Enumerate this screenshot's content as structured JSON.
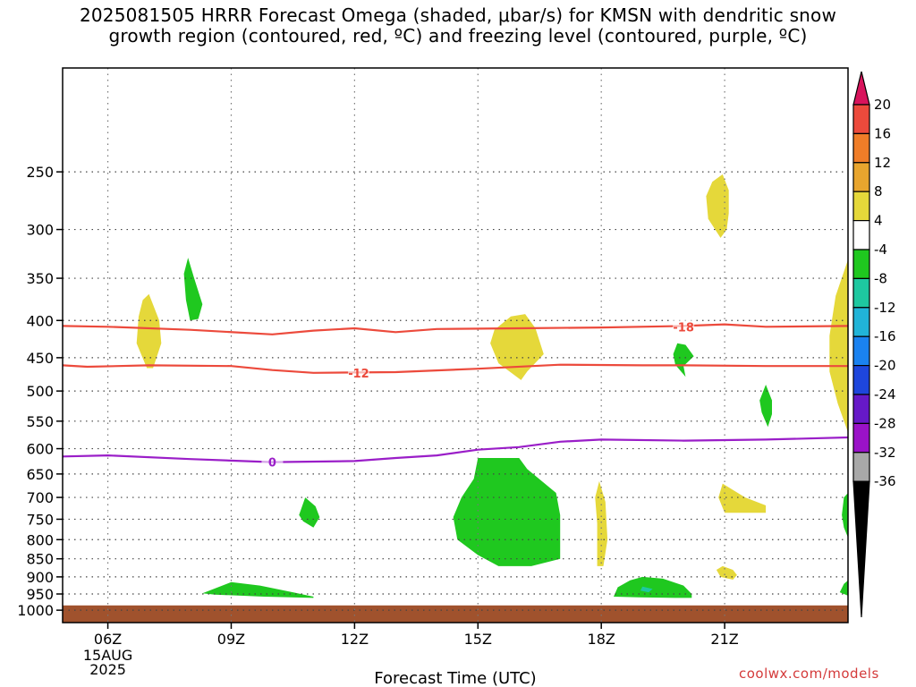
{
  "title": {
    "line1": "2025081505 HRRR Forecast Omega (shaded, μbar/s) for KMSN with dendritic snow",
    "line2": "growth region (contoured, red, ºC) and freezing level (contoured, purple, ºC)"
  },
  "footer": "coolwx.com/models",
  "chart_data": {
    "type": "heatmap",
    "xlabel": "Forecast Time (UTC)",
    "ylabel": "",
    "x_range_hours_utc": [
      4.9,
      24.0
    ],
    "y_range_hpa": [
      1040,
      180
    ],
    "y_scale": "log-pressure (inverted)",
    "grid": "dotted",
    "x_ticks": [
      {
        "hour": 6,
        "label": "06Z",
        "sub1": "15AUG",
        "sub2": "2025"
      },
      {
        "hour": 9,
        "label": "09Z"
      },
      {
        "hour": 12,
        "label": "12Z"
      },
      {
        "hour": 15,
        "label": "15Z"
      },
      {
        "hour": 18,
        "label": "18Z"
      },
      {
        "hour": 21,
        "label": "21Z"
      }
    ],
    "y_ticks": [
      {
        "p": 250,
        "label": "250"
      },
      {
        "p": 300,
        "label": "300"
      },
      {
        "p": 350,
        "label": "350"
      },
      {
        "p": 400,
        "label": "400"
      },
      {
        "p": 450,
        "label": "450"
      },
      {
        "p": 500,
        "label": "500"
      },
      {
        "p": 550,
        "label": "550"
      },
      {
        "p": 600,
        "label": "600"
      },
      {
        "p": 650,
        "label": "650"
      },
      {
        "p": 700,
        "label": "700"
      },
      {
        "p": 750,
        "label": "750"
      },
      {
        "p": 800,
        "label": "800"
      },
      {
        "p": 850,
        "label": "850"
      },
      {
        "p": 900,
        "label": "900"
      },
      {
        "p": 950,
        "label": "950"
      },
      {
        "p": 1000,
        "label": "1000"
      }
    ],
    "ground_top_hpa": 985,
    "ground_color": "#a0522d",
    "contours": [
      {
        "name": "-18 °C",
        "color": "#ec4a3c",
        "label": "-18",
        "label_at": [
          20.0,
          408
        ],
        "points": [
          [
            4.9,
            407
          ],
          [
            6,
            408
          ],
          [
            8,
            412
          ],
          [
            10,
            418
          ],
          [
            11,
            413
          ],
          [
            12,
            410
          ],
          [
            13,
            415
          ],
          [
            14,
            411
          ],
          [
            16,
            410
          ],
          [
            18,
            409
          ],
          [
            20,
            407
          ],
          [
            21,
            405
          ],
          [
            22,
            408
          ],
          [
            24,
            407
          ]
        ]
      },
      {
        "name": "-12 °C",
        "color": "#ec4a3c",
        "label": "-12",
        "label_at": [
          12.1,
          472
        ],
        "points": [
          [
            4.9,
            461
          ],
          [
            5.5,
            463
          ],
          [
            7,
            461
          ],
          [
            9,
            462
          ],
          [
            10,
            468
          ],
          [
            11,
            472
          ],
          [
            13,
            471
          ],
          [
            15,
            466
          ],
          [
            17,
            460
          ],
          [
            19,
            461
          ],
          [
            20,
            461
          ],
          [
            22,
            462
          ],
          [
            24,
            462
          ]
        ]
      },
      {
        "name": "0 °C",
        "color": "#9a1ec8",
        "label": "0",
        "label_at": [
          10.0,
          626
        ],
        "points": [
          [
            4.9,
            615
          ],
          [
            6,
            613
          ],
          [
            8,
            620
          ],
          [
            10,
            626
          ],
          [
            12,
            624
          ],
          [
            13,
            618
          ],
          [
            14,
            613
          ],
          [
            15,
            602
          ],
          [
            16,
            597
          ],
          [
            17,
            587
          ],
          [
            18,
            583
          ],
          [
            20,
            585
          ],
          [
            22,
            583
          ],
          [
            24,
            579
          ]
        ]
      }
    ],
    "shaded_regions": [
      {
        "color": "#e5d83a",
        "value_range": "4 to 8",
        "points": [
          [
            7.0,
            368
          ],
          [
            7.25,
            400
          ],
          [
            7.3,
            430
          ],
          [
            7.1,
            465
          ],
          [
            6.95,
            465
          ],
          [
            6.7,
            430
          ],
          [
            6.75,
            395
          ],
          [
            6.85,
            375
          ]
        ]
      },
      {
        "color": "#1fc81f",
        "value_range": "-8 to -4",
        "points": [
          [
            7.95,
            328
          ],
          [
            8.1,
            350
          ],
          [
            8.3,
            380
          ],
          [
            8.2,
            398
          ],
          [
            8.0,
            400
          ],
          [
            7.9,
            375
          ],
          [
            7.85,
            345
          ]
        ]
      },
      {
        "color": "#e5d83a",
        "value_range": "4 to 8",
        "points": [
          [
            15.8,
            395
          ],
          [
            16.15,
            392
          ],
          [
            16.4,
            410
          ],
          [
            16.6,
            445
          ],
          [
            16.2,
            470
          ],
          [
            16.05,
            483
          ],
          [
            15.5,
            458
          ],
          [
            15.3,
            430
          ],
          [
            15.4,
            412
          ]
        ]
      },
      {
        "color": "#1fc81f",
        "value_range": "-8 to -4",
        "points": [
          [
            19.85,
            430
          ],
          [
            20.05,
            432
          ],
          [
            20.25,
            448
          ],
          [
            20.0,
            462
          ],
          [
            20.05,
            478
          ],
          [
            19.8,
            460
          ],
          [
            19.75,
            445
          ]
        ]
      },
      {
        "color": "#e5d83a",
        "value_range": "4 to 8",
        "points": [
          [
            20.95,
            252
          ],
          [
            21.1,
            265
          ],
          [
            21.1,
            285
          ],
          [
            21.05,
            300
          ],
          [
            20.9,
            308
          ],
          [
            20.6,
            290
          ],
          [
            20.55,
            270
          ],
          [
            20.7,
            258
          ]
        ]
      },
      {
        "color": "#1fc81f",
        "value_range": "-8 to -4",
        "points": [
          [
            22.0,
            490
          ],
          [
            22.15,
            515
          ],
          [
            22.15,
            538
          ],
          [
            22.05,
            560
          ],
          [
            21.9,
            535
          ],
          [
            21.85,
            515
          ]
        ]
      },
      {
        "color": "#e5d83a",
        "value_range": "4 to 8",
        "points": [
          [
            24.0,
            330
          ],
          [
            24.0,
            570
          ],
          [
            23.75,
            520
          ],
          [
            23.55,
            470
          ],
          [
            23.55,
            420
          ],
          [
            23.7,
            370
          ]
        ]
      },
      {
        "color": "#1fc81f",
        "value_range": "-8 to -4",
        "points": [
          [
            15.0,
            618
          ],
          [
            16.0,
            618
          ],
          [
            16.2,
            640
          ],
          [
            16.9,
            690
          ],
          [
            17.0,
            740
          ],
          [
            17.0,
            850
          ],
          [
            16.3,
            870
          ],
          [
            15.5,
            870
          ],
          [
            15.0,
            840
          ],
          [
            14.5,
            800
          ],
          [
            14.4,
            745
          ],
          [
            14.6,
            700
          ],
          [
            14.9,
            660
          ]
        ]
      },
      {
        "color": "#1fc81f",
        "value_range": "-8 to -4",
        "points": [
          [
            10.8,
            700
          ],
          [
            11.05,
            720
          ],
          [
            11.15,
            745
          ],
          [
            11.0,
            770
          ],
          [
            10.75,
            755
          ],
          [
            10.65,
            740
          ]
        ]
      },
      {
        "color": "#e5d83a",
        "value_range": "4 to 8",
        "points": [
          [
            17.95,
            665
          ],
          [
            18.1,
            710
          ],
          [
            18.15,
            800
          ],
          [
            18.05,
            870
          ],
          [
            17.9,
            870
          ],
          [
            17.9,
            760
          ],
          [
            17.85,
            700
          ]
        ]
      },
      {
        "color": "#e5d83a",
        "value_range": "4 to 8",
        "points": [
          [
            20.95,
            670
          ],
          [
            21.5,
            700
          ],
          [
            22.0,
            718
          ],
          [
            22.0,
            735
          ],
          [
            21.0,
            735
          ],
          [
            20.85,
            700
          ]
        ]
      },
      {
        "color": "#e5d83a",
        "value_range": "4 to 8",
        "points": [
          [
            20.95,
            870
          ],
          [
            21.2,
            880
          ],
          [
            21.3,
            895
          ],
          [
            21.2,
            908
          ],
          [
            20.9,
            900
          ],
          [
            20.8,
            880
          ]
        ]
      },
      {
        "color": "#1fc81f",
        "value_range": "-8 to -4",
        "points": [
          [
            23.9,
            700
          ],
          [
            24.0,
            690
          ],
          [
            24.0,
            795
          ],
          [
            23.9,
            770
          ],
          [
            23.85,
            740
          ]
        ]
      },
      {
        "color": "#1fc81f",
        "value_range": "-8 to -4",
        "points": [
          [
            9.0,
            915
          ],
          [
            9.7,
            925
          ],
          [
            10.5,
            945
          ],
          [
            11.0,
            958
          ],
          [
            11.0,
            962
          ],
          [
            9.8,
            958
          ],
          [
            8.6,
            952
          ],
          [
            8.3,
            948
          ]
        ]
      },
      {
        "color": "#1fc81f",
        "value_range": "-8 to -4",
        "points": [
          [
            19.0,
            900
          ],
          [
            19.5,
            905
          ],
          [
            20.0,
            925
          ],
          [
            20.2,
            950
          ],
          [
            20.2,
            962
          ],
          [
            19.8,
            962
          ],
          [
            18.9,
            960
          ],
          [
            18.3,
            958
          ],
          [
            18.4,
            930
          ],
          [
            18.7,
            910
          ]
        ]
      },
      {
        "color": "#1ec8a0",
        "value_range": "-12 to -8",
        "points": [
          [
            19.0,
            928
          ],
          [
            19.25,
            935
          ],
          [
            19.15,
            945
          ],
          [
            18.95,
            940
          ]
        ]
      },
      {
        "color": "#1fc81f",
        "value_range": "-8 to -4",
        "points": [
          [
            23.9,
            920
          ],
          [
            24.0,
            910
          ],
          [
            24.0,
            955
          ],
          [
            23.8,
            945
          ]
        ]
      }
    ],
    "colorbar": {
      "ticks": [
        "20",
        "16",
        "12",
        "8",
        "4",
        "-4",
        "-8",
        "-12",
        "-16",
        "-20",
        "-24",
        "-28",
        "-32",
        "-36"
      ],
      "band_colors": [
        "#d8145c",
        "#ec4a3c",
        "#ef7d28",
        "#e8a52e",
        "#e5d83a",
        "#ffffff",
        "#1fc81f",
        "#1ec8a0",
        "#21b4d8",
        "#1a82f0",
        "#1e46dc",
        "#6619c8",
        "#9a12c8",
        "#a8a8a8",
        "#000000"
      ]
    }
  }
}
